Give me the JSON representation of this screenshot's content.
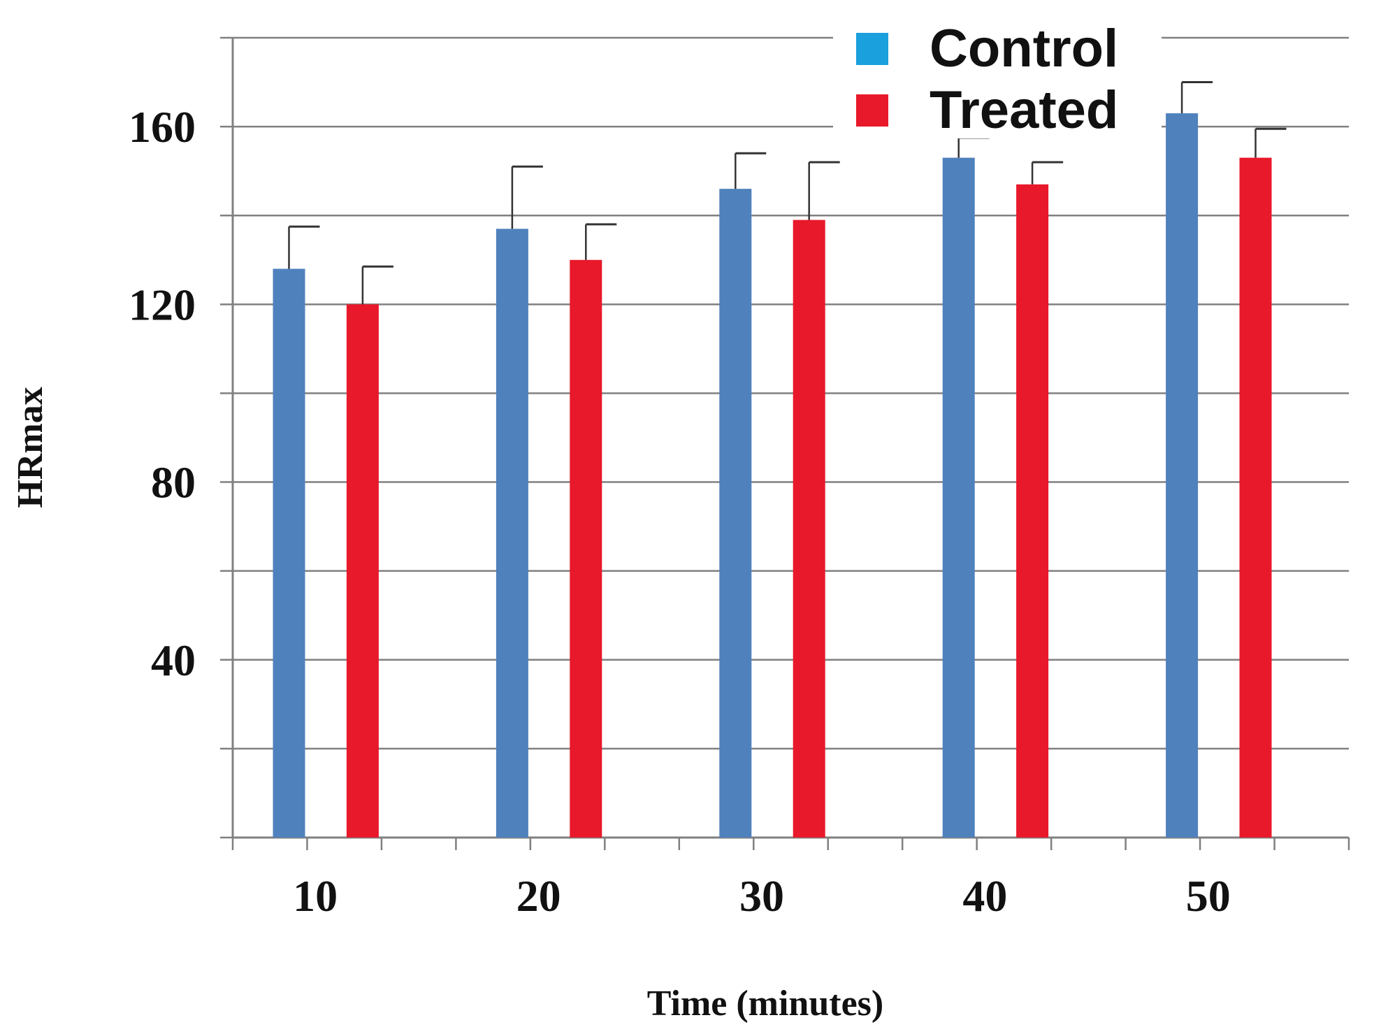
{
  "chart_data": {
    "type": "bar",
    "title": "",
    "xlabel": "Time  (minutes)",
    "ylabel": "HRmax",
    "categories": [
      "10",
      "20",
      "30",
      "40",
      "50"
    ],
    "ylim": [
      0,
      180
    ],
    "yticks": [
      40,
      80,
      120,
      160
    ],
    "grid_step": 20,
    "grid": true,
    "legend_position": "top-right",
    "series": [
      {
        "name": "Control",
        "legend_color": "#1aa0dc",
        "bar_color": "#4f81bd",
        "values": [
          128,
          137,
          146,
          153,
          163
        ],
        "errors": [
          9.5,
          14,
          8,
          4.5,
          7
        ]
      },
      {
        "name": "Treated",
        "legend_color": "#e8192a",
        "bar_color": "#e8192a",
        "values": [
          120,
          130,
          139,
          147,
          153
        ],
        "errors": [
          8.5,
          8,
          13,
          5,
          6.5
        ]
      }
    ],
    "axis_color": "#808080",
    "grid_color": "#808080"
  }
}
